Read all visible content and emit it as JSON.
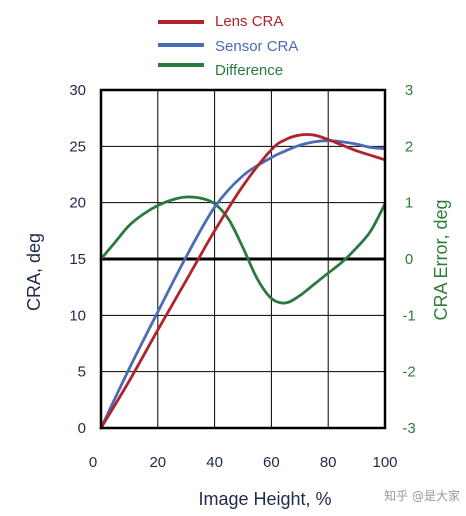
{
  "chart_data": {
    "type": "line",
    "xlabel": "Image Height, %",
    "ylabel_left": "CRA, deg",
    "ylabel_right": "CRA Error, deg",
    "xlim": [
      0,
      100
    ],
    "ylim_left": [
      0,
      30
    ],
    "ylim_right": [
      -3,
      3
    ],
    "x_ticks": [
      "0",
      "20",
      "40",
      "60",
      "80",
      "100"
    ],
    "y_left_ticks": [
      "0",
      "5",
      "10",
      "15",
      "20",
      "25",
      "30"
    ],
    "y_right_ticks": [
      "-3",
      "-2",
      "-1",
      "0",
      "1",
      "2",
      "3"
    ],
    "grid": true,
    "legend_position": "top-center",
    "series": [
      {
        "name": "Lens CRA",
        "axis": "left",
        "color": "#b0232a",
        "x": [
          0,
          10,
          20,
          30,
          40,
          50,
          60,
          65,
          70,
          75,
          80,
          85,
          90,
          95,
          100
        ],
        "y": [
          0,
          4.2,
          8.7,
          13.1,
          17.5,
          21.5,
          24.7,
          25.6,
          26.0,
          26.0,
          25.6,
          25.1,
          24.6,
          24.2,
          23.8
        ]
      },
      {
        "name": "Sensor CRA",
        "axis": "left",
        "color": "#4a6bb5",
        "x": [
          0,
          10,
          20,
          30,
          40,
          50,
          60,
          65,
          70,
          75,
          80,
          85,
          90,
          95,
          100
        ],
        "y": [
          0,
          5.3,
          10.3,
          15.2,
          19.6,
          22.4,
          24.0,
          24.6,
          25.1,
          25.4,
          25.5,
          25.4,
          25.2,
          24.9,
          24.8
        ]
      },
      {
        "name": "Difference",
        "axis": "right",
        "color": "#2a7a40",
        "x": [
          0,
          5,
          10,
          15,
          20,
          25,
          30,
          35,
          40,
          45,
          50,
          55,
          60,
          65,
          70,
          75,
          80,
          85,
          90,
          95,
          100
        ],
        "y": [
          0,
          0.3,
          0.6,
          0.8,
          0.95,
          1.05,
          1.1,
          1.08,
          0.98,
          0.7,
          0.2,
          -0.35,
          -0.7,
          -0.78,
          -0.65,
          -0.45,
          -0.25,
          -0.05,
          0.2,
          0.5,
          0.98
        ]
      }
    ]
  },
  "watermark": "知乎 @是大家"
}
